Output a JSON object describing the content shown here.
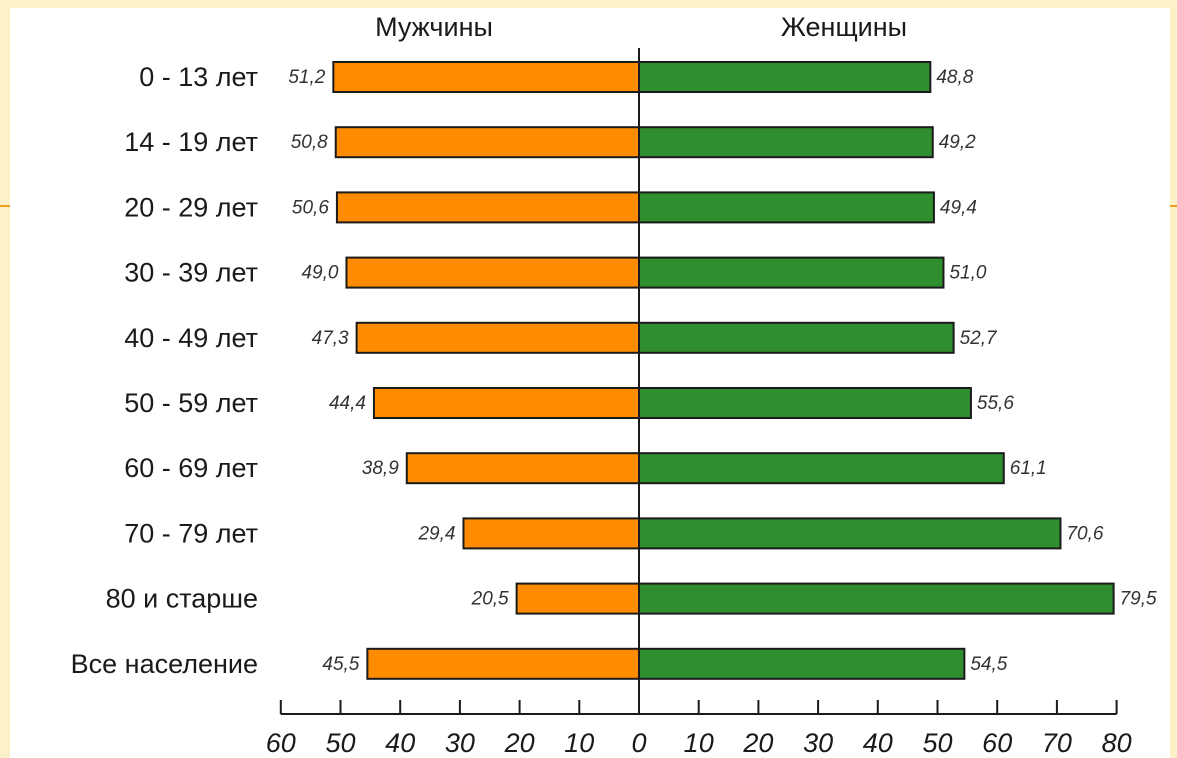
{
  "colors": {
    "slide_background": "#fdf1c8",
    "accent_line": "#f0a020",
    "men": "#ff8c00",
    "women": "#2f8f2f",
    "bar_outline": "#1a1a1a"
  },
  "chart_data": {
    "type": "bar",
    "orientation": "horizontal-diverging",
    "series_labels": {
      "left": "Мужчины",
      "right": "Женщины"
    },
    "categories": [
      "0 - 13 лет",
      "14 - 19 лет",
      "20 - 29 лет",
      "30 - 39 лет",
      "40 - 49 лет",
      "50 - 59 лет",
      "60 - 69 лет",
      "70 - 79 лет",
      "80 и старше",
      "Все население"
    ],
    "series": [
      {
        "name": "Мужчины",
        "values": [
          51.2,
          50.8,
          50.6,
          49.0,
          47.3,
          44.4,
          38.9,
          29.4,
          20.5,
          45.5
        ],
        "labels": [
          "51,2",
          "50,8",
          "50,6",
          "49,0",
          "47,3",
          "44,4",
          "38,9",
          "29,4",
          "20,5",
          "45,5"
        ]
      },
      {
        "name": "Женщины",
        "values": [
          48.8,
          49.2,
          49.4,
          51.0,
          52.7,
          55.6,
          61.1,
          70.6,
          79.5,
          54.5
        ],
        "labels": [
          "48,8",
          "49,2",
          "49,4",
          "51,0",
          "52,7",
          "55,6",
          "61,1",
          "70,6",
          "79,5",
          "54,5"
        ]
      }
    ],
    "x_axis": {
      "range_left": [
        0,
        60
      ],
      "range_right": [
        0,
        80
      ],
      "ticks_left": [
        60,
        50,
        40,
        30,
        20,
        10
      ],
      "ticks_right": [
        0,
        10,
        20,
        30,
        40,
        50,
        60,
        70,
        80
      ]
    },
    "grid": false
  }
}
